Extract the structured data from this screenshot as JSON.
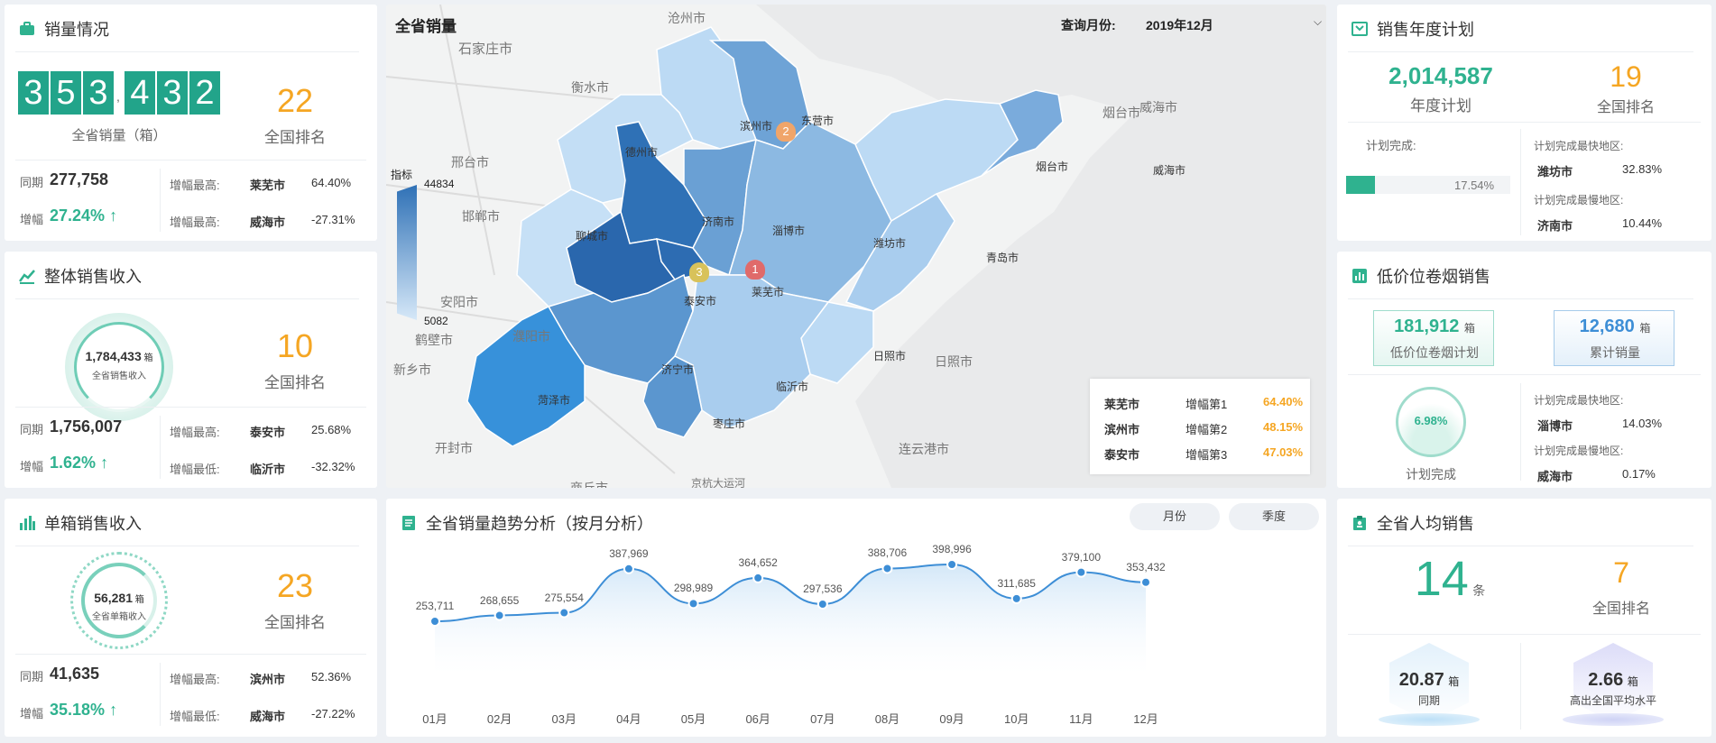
{
  "sales_panel": {
    "title": "销量情况",
    "digits": [
      "3",
      "5",
      "3",
      "4",
      "3",
      "2"
    ],
    "separator": ",",
    "label": "全省销量（箱）",
    "rank": "22",
    "rank_label": "全国排名",
    "yoy_label": "同期",
    "yoy_value": "277,758",
    "growth_label": "增幅",
    "growth_value": "27.24%",
    "max_label": "增幅最高:",
    "max_city": "莱芜市",
    "max_pct": "64.40%",
    "min_label": "增幅最高:",
    "min_city": "威海市",
    "min_pct": "-27.31%"
  },
  "revenue_panel": {
    "title": "整体销售收入",
    "value": "1,784,433",
    "unit": "箱",
    "label": "全省销售收入",
    "rank": "10",
    "rank_label": "全国排名",
    "yoy_label": "同期",
    "yoy_value": "1,756,007",
    "growth_label": "增幅",
    "growth_value": "1.62%",
    "max_label": "增幅最高:",
    "max_city": "泰安市",
    "max_pct": "25.68%",
    "min_label": "增幅最低:",
    "min_city": "临沂市",
    "min_pct": "-32.32%"
  },
  "unit_panel": {
    "title": "单箱销售收入",
    "value": "56,281",
    "unit": "箱",
    "label": "全省单箱收入",
    "rank": "23",
    "rank_label": "全国排名",
    "yoy_label": "同期",
    "yoy_value": "41,635",
    "growth_label": "增幅",
    "growth_value": "35.18%",
    "max_label": "增幅最高:",
    "max_city": "滨州市",
    "max_pct": "52.36%",
    "min_label": "增幅最低:",
    "min_city": "威海市",
    "min_pct": "-27.22%"
  },
  "map_panel": {
    "title": "全省销量",
    "query_label": "查询月份:",
    "query_value": "2019年12月",
    "legend_title": "指标",
    "legend_max": "44834",
    "legend_min": "5082",
    "cities": [
      "德州市",
      "滨州市",
      "东营市",
      "烟台市",
      "威海市",
      "聊城市",
      "济南市",
      "淄博市",
      "潍坊市",
      "青岛市",
      "泰安市",
      "莱芜市",
      "济宁市",
      "日照市",
      "菏泽市",
      "临沂市",
      "枣庄市"
    ],
    "bg_labels": [
      "沧州市",
      "石家庄市",
      "衡水市",
      "邢台市",
      "邯郸市",
      "安阳市",
      "鹤壁市",
      "濮阳市",
      "新乡市",
      "开封市",
      "商丘市",
      "连云港市",
      "日照市",
      "京杭大运河",
      "威海市",
      "烟台市"
    ],
    "markers": [
      "1",
      "2",
      "3"
    ],
    "ranking": [
      {
        "city": "莱芜市",
        "label": "增幅第1",
        "pct": "64.40%"
      },
      {
        "city": "滨州市",
        "label": "增幅第2",
        "pct": "48.15%"
      },
      {
        "city": "泰安市",
        "label": "增幅第3",
        "pct": "47.03%"
      }
    ]
  },
  "trend_panel": {
    "title": "全省销量趋势分析（按月分析）",
    "btn_month": "月份",
    "btn_quarter": "季度"
  },
  "chart_data": {
    "type": "area",
    "categories": [
      "01月",
      "02月",
      "03月",
      "04月",
      "05月",
      "06月",
      "07月",
      "08月",
      "09月",
      "10月",
      "11月",
      "12月"
    ],
    "values": [
      253711,
      268655,
      275554,
      387969,
      298989,
      364652,
      297536,
      388706,
      398996,
      311685,
      379100,
      353432
    ],
    "value_labels": [
      "253,711",
      "268,655",
      "275,554",
      "387,969",
      "298,989",
      "364,652",
      "297,536",
      "388,706",
      "398,996",
      "311,685",
      "379,100",
      "353,432"
    ],
    "title": "全省销量趋势分析（按月分析）",
    "series_color": "#3d8ed6"
  },
  "plan_panel": {
    "title": "销售年度计划",
    "plan_value": "2,014,587",
    "plan_label": "年度计划",
    "rank": "19",
    "rank_label": "全国排名",
    "progress_label": "计划完成:",
    "progress_pct": "17.54%",
    "progress_fraction": 0.1754,
    "fast_label": "计划完成最快地区:",
    "fast_city": "潍坊市",
    "fast_pct": "32.83%",
    "slow_label": "计划完成最慢地区:",
    "slow_city": "济南市",
    "slow_pct": "10.44%"
  },
  "lowprice_panel": {
    "title": "低价位卷烟销售",
    "plan_value": "181,912",
    "plan_unit": "箱",
    "plan_label": "低价位卷烟计划",
    "sum_value": "12,680",
    "sum_unit": "箱",
    "sum_label": "累计销量",
    "complete_pct": "6.98%",
    "complete_label": "计划完成",
    "fast_label": "计划完成最快地区:",
    "fast_city": "淄博市",
    "fast_pct": "14.03%",
    "slow_label": "计划完成最慢地区:",
    "slow_city": "威海市",
    "slow_pct": "0.17%"
  },
  "percapita_panel": {
    "title": "全省人均销售",
    "value": "14",
    "unit": "条",
    "rank": "7",
    "rank_label": "全国排名",
    "yoy_value": "20.87",
    "yoy_unit": "箱",
    "yoy_label": "同期",
    "above_value": "2.66",
    "above_unit": "箱",
    "above_label": "高出全国平均水平"
  },
  "colors": {
    "accent_green": "#2fb28f",
    "rank_orange": "#f5a623",
    "digit_bg": "#22a48a",
    "blue": "#4a8ed0"
  }
}
